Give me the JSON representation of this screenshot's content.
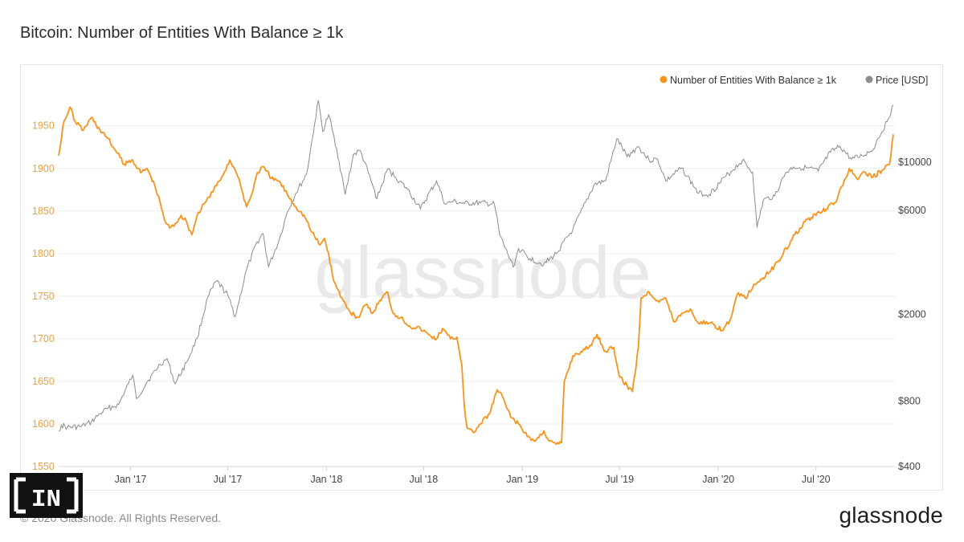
{
  "header": {
    "title": "Bitcoin: Number of Entities With Balance ≥ 1k"
  },
  "watermark": "glassnode",
  "footer": {
    "copyright": "© 2020 Glassnode. All Rights Reserved.",
    "logo": "glassnode",
    "badge": "IN"
  },
  "colors": {
    "entities": "#f7931a",
    "price": "#8c8c8c",
    "grid": "#ececec",
    "leftAxis": "#e6a24a"
  },
  "chart_data": {
    "type": "line",
    "legend_placement": "top-right",
    "grid": true,
    "x_ticks": [
      "Jan '17",
      "Jul '17",
      "Jan '18",
      "Jul '18",
      "Jan '19",
      "Jul '19",
      "Jan '20",
      "Jul '20"
    ],
    "x_range": [
      "2016-08-20",
      "2020-11-25"
    ],
    "y_left": {
      "ticks": [
        1550,
        1600,
        1650,
        1700,
        1750,
        1800,
        1850,
        1900,
        1950
      ],
      "ylim": [
        1550,
        1995
      ]
    },
    "y_right": {
      "scale": "log",
      "ticks": [
        "$400",
        "$800",
        "$2000",
        "$6000",
        "$10000"
      ],
      "tick_values": [
        400,
        800,
        2000,
        6000,
        10000
      ],
      "ylim": [
        400,
        22000
      ]
    },
    "series": [
      {
        "name": "Number of Entities With Balance ≥ 1k",
        "axis": "left",
        "points": [
          [
            "2016-08-20",
            1915
          ],
          [
            "2016-08-28",
            1950
          ],
          [
            "2016-09-10",
            1972
          ],
          [
            "2016-09-20",
            1955
          ],
          [
            "2016-10-05",
            1945
          ],
          [
            "2016-10-20",
            1960
          ],
          [
            "2016-11-05",
            1945
          ],
          [
            "2016-11-20",
            1935
          ],
          [
            "2016-12-05",
            1920
          ],
          [
            "2016-12-20",
            1905
          ],
          [
            "2017-01-05",
            1910
          ],
          [
            "2017-01-20",
            1895
          ],
          [
            "2017-02-01",
            1900
          ],
          [
            "2017-02-15",
            1880
          ],
          [
            "2017-02-25",
            1860
          ],
          [
            "2017-03-05",
            1840
          ],
          [
            "2017-03-15",
            1830
          ],
          [
            "2017-03-25",
            1835
          ],
          [
            "2017-04-05",
            1845
          ],
          [
            "2017-04-15",
            1838
          ],
          [
            "2017-04-25",
            1822
          ],
          [
            "2017-05-05",
            1845
          ],
          [
            "2017-05-20",
            1860
          ],
          [
            "2017-06-05",
            1875
          ],
          [
            "2017-06-20",
            1890
          ],
          [
            "2017-07-05",
            1910
          ],
          [
            "2017-07-15",
            1898
          ],
          [
            "2017-07-25",
            1880
          ],
          [
            "2017-08-05",
            1855
          ],
          [
            "2017-08-15",
            1870
          ],
          [
            "2017-08-25",
            1895
          ],
          [
            "2017-09-05",
            1902
          ],
          [
            "2017-09-20",
            1888
          ],
          [
            "2017-10-05",
            1885
          ],
          [
            "2017-10-20",
            1870
          ],
          [
            "2017-11-05",
            1855
          ],
          [
            "2017-11-20",
            1845
          ],
          [
            "2017-12-05",
            1825
          ],
          [
            "2017-12-20",
            1810
          ],
          [
            "2017-12-28",
            1818
          ],
          [
            "2018-01-05",
            1800
          ],
          [
            "2018-01-12",
            1775
          ],
          [
            "2018-01-20",
            1760
          ],
          [
            "2018-02-01",
            1745
          ],
          [
            "2018-02-15",
            1730
          ],
          [
            "2018-03-01",
            1725
          ],
          [
            "2018-03-15",
            1740
          ],
          [
            "2018-03-28",
            1730
          ],
          [
            "2018-04-10",
            1745
          ],
          [
            "2018-04-25",
            1755
          ],
          [
            "2018-05-05",
            1730
          ],
          [
            "2018-05-20",
            1725
          ],
          [
            "2018-06-05",
            1715
          ],
          [
            "2018-06-25",
            1712
          ],
          [
            "2018-07-10",
            1705
          ],
          [
            "2018-07-25",
            1700
          ],
          [
            "2018-08-05",
            1712
          ],
          [
            "2018-08-20",
            1700
          ],
          [
            "2018-09-01",
            1702
          ],
          [
            "2018-09-10",
            1670
          ],
          [
            "2018-09-15",
            1620
          ],
          [
            "2018-09-20",
            1595
          ],
          [
            "2018-10-01",
            1590
          ],
          [
            "2018-10-15",
            1600
          ],
          [
            "2018-11-01",
            1612
          ],
          [
            "2018-11-15",
            1640
          ],
          [
            "2018-11-25",
            1632
          ],
          [
            "2018-12-10",
            1608
          ],
          [
            "2018-12-25",
            1600
          ],
          [
            "2019-01-10",
            1585
          ],
          [
            "2019-01-25",
            1580
          ],
          [
            "2019-02-10",
            1592
          ],
          [
            "2019-02-20",
            1580
          ],
          [
            "2019-03-05",
            1576
          ],
          [
            "2019-03-15",
            1578
          ],
          [
            "2019-03-20",
            1650
          ],
          [
            "2019-04-05",
            1680
          ],
          [
            "2019-04-20",
            1685
          ],
          [
            "2019-05-05",
            1690
          ],
          [
            "2019-05-20",
            1705
          ],
          [
            "2019-06-05",
            1685
          ],
          [
            "2019-06-20",
            1690
          ],
          [
            "2019-07-01",
            1655
          ],
          [
            "2019-07-15",
            1645
          ],
          [
            "2019-07-25",
            1638
          ],
          [
            "2019-08-05",
            1690
          ],
          [
            "2019-08-10",
            1748
          ],
          [
            "2019-08-25",
            1755
          ],
          [
            "2019-09-10",
            1745
          ],
          [
            "2019-09-25",
            1748
          ],
          [
            "2019-10-10",
            1720
          ],
          [
            "2019-10-25",
            1730
          ],
          [
            "2019-11-10",
            1735
          ],
          [
            "2019-11-25",
            1718
          ],
          [
            "2019-12-10",
            1720
          ],
          [
            "2019-12-25",
            1716
          ],
          [
            "2020-01-10",
            1710
          ],
          [
            "2020-01-25",
            1725
          ],
          [
            "2020-02-05",
            1752
          ],
          [
            "2020-02-20",
            1748
          ],
          [
            "2020-03-05",
            1760
          ],
          [
            "2020-03-20",
            1770
          ],
          [
            "2020-04-05",
            1778
          ],
          [
            "2020-04-20",
            1790
          ],
          [
            "2020-05-01",
            1800
          ],
          [
            "2020-05-15",
            1815
          ],
          [
            "2020-06-01",
            1830
          ],
          [
            "2020-06-15",
            1840
          ],
          [
            "2020-07-01",
            1845
          ],
          [
            "2020-07-20",
            1852
          ],
          [
            "2020-08-05",
            1860
          ],
          [
            "2020-08-20",
            1880
          ],
          [
            "2020-09-01",
            1900
          ],
          [
            "2020-09-15",
            1888
          ],
          [
            "2020-10-01",
            1895
          ],
          [
            "2020-10-15",
            1890
          ],
          [
            "2020-11-01",
            1898
          ],
          [
            "2020-11-15",
            1905
          ],
          [
            "2020-11-22",
            1940
          ]
        ]
      },
      {
        "name": "Price [USD]",
        "axis": "right",
        "points": [
          [
            "2016-08-20",
            580
          ],
          [
            "2016-08-25",
            620
          ],
          [
            "2016-09-05",
            605
          ],
          [
            "2016-10-01",
            610
          ],
          [
            "2016-10-20",
            640
          ],
          [
            "2016-11-05",
            700
          ],
          [
            "2016-11-20",
            740
          ],
          [
            "2016-12-10",
            770
          ],
          [
            "2016-12-28",
            960
          ],
          [
            "2017-01-05",
            1050
          ],
          [
            "2017-01-12",
            820
          ],
          [
            "2017-02-01",
            980
          ],
          [
            "2017-02-25",
            1180
          ],
          [
            "2017-03-10",
            1250
          ],
          [
            "2017-03-25",
            960
          ],
          [
            "2017-04-15",
            1200
          ],
          [
            "2017-05-05",
            1550
          ],
          [
            "2017-05-25",
            2400
          ],
          [
            "2017-06-10",
            2850
          ],
          [
            "2017-07-01",
            2450
          ],
          [
            "2017-07-15",
            1950
          ],
          [
            "2017-08-05",
            3200
          ],
          [
            "2017-08-25",
            4300
          ],
          [
            "2017-09-05",
            4700
          ],
          [
            "2017-09-15",
            3300
          ],
          [
            "2017-10-05",
            4400
          ],
          [
            "2017-10-20",
            5900
          ],
          [
            "2017-11-05",
            7200
          ],
          [
            "2017-11-25",
            8800
          ],
          [
            "2017-12-10",
            15000
          ],
          [
            "2017-12-17",
            19200
          ],
          [
            "2017-12-25",
            13800
          ],
          [
            "2018-01-05",
            16500
          ],
          [
            "2018-01-20",
            11500
          ],
          [
            "2018-02-05",
            7100
          ],
          [
            "2018-02-20",
            10800
          ],
          [
            "2018-03-05",
            11300
          ],
          [
            "2018-03-25",
            8200
          ],
          [
            "2018-04-05",
            6800
          ],
          [
            "2018-04-25",
            9300
          ],
          [
            "2018-05-10",
            8500
          ],
          [
            "2018-06-01",
            7500
          ],
          [
            "2018-06-25",
            6100
          ],
          [
            "2018-07-25",
            8200
          ],
          [
            "2018-08-10",
            6400
          ],
          [
            "2018-08-25",
            6600
          ],
          [
            "2018-09-15",
            6450
          ],
          [
            "2018-10-15",
            6500
          ],
          [
            "2018-11-10",
            6400
          ],
          [
            "2018-11-20",
            4600
          ],
          [
            "2018-12-15",
            3300
          ],
          [
            "2018-12-25",
            4000
          ],
          [
            "2019-01-15",
            3600
          ],
          [
            "2019-02-10",
            3400
          ],
          [
            "2019-03-05",
            3800
          ],
          [
            "2019-04-05",
            4900
          ],
          [
            "2019-05-15",
            7900
          ],
          [
            "2019-06-05",
            8200
          ],
          [
            "2019-06-26",
            12800
          ],
          [
            "2019-07-15",
            10600
          ],
          [
            "2019-08-05",
            11800
          ],
          [
            "2019-08-25",
            10200
          ],
          [
            "2019-09-10",
            10300
          ],
          [
            "2019-09-25",
            8200
          ],
          [
            "2019-10-25",
            9400
          ],
          [
            "2019-11-25",
            7200
          ],
          [
            "2019-12-15",
            7100
          ],
          [
            "2020-01-15",
            8600
          ],
          [
            "2020-02-15",
            10200
          ],
          [
            "2020-03-05",
            9000
          ],
          [
            "2020-03-13",
            5000
          ],
          [
            "2020-03-25",
            6700
          ],
          [
            "2020-04-15",
            7000
          ],
          [
            "2020-05-05",
            8900
          ],
          [
            "2020-05-20",
            9500
          ],
          [
            "2020-06-15",
            9400
          ],
          [
            "2020-07-05",
            9100
          ],
          [
            "2020-07-28",
            11100
          ],
          [
            "2020-08-15",
            11800
          ],
          [
            "2020-09-05",
            10300
          ],
          [
            "2020-09-25",
            10700
          ],
          [
            "2020-10-15",
            11400
          ],
          [
            "2020-10-25",
            12900
          ],
          [
            "2020-11-10",
            15300
          ],
          [
            "2020-11-22",
            18300
          ]
        ]
      }
    ]
  }
}
